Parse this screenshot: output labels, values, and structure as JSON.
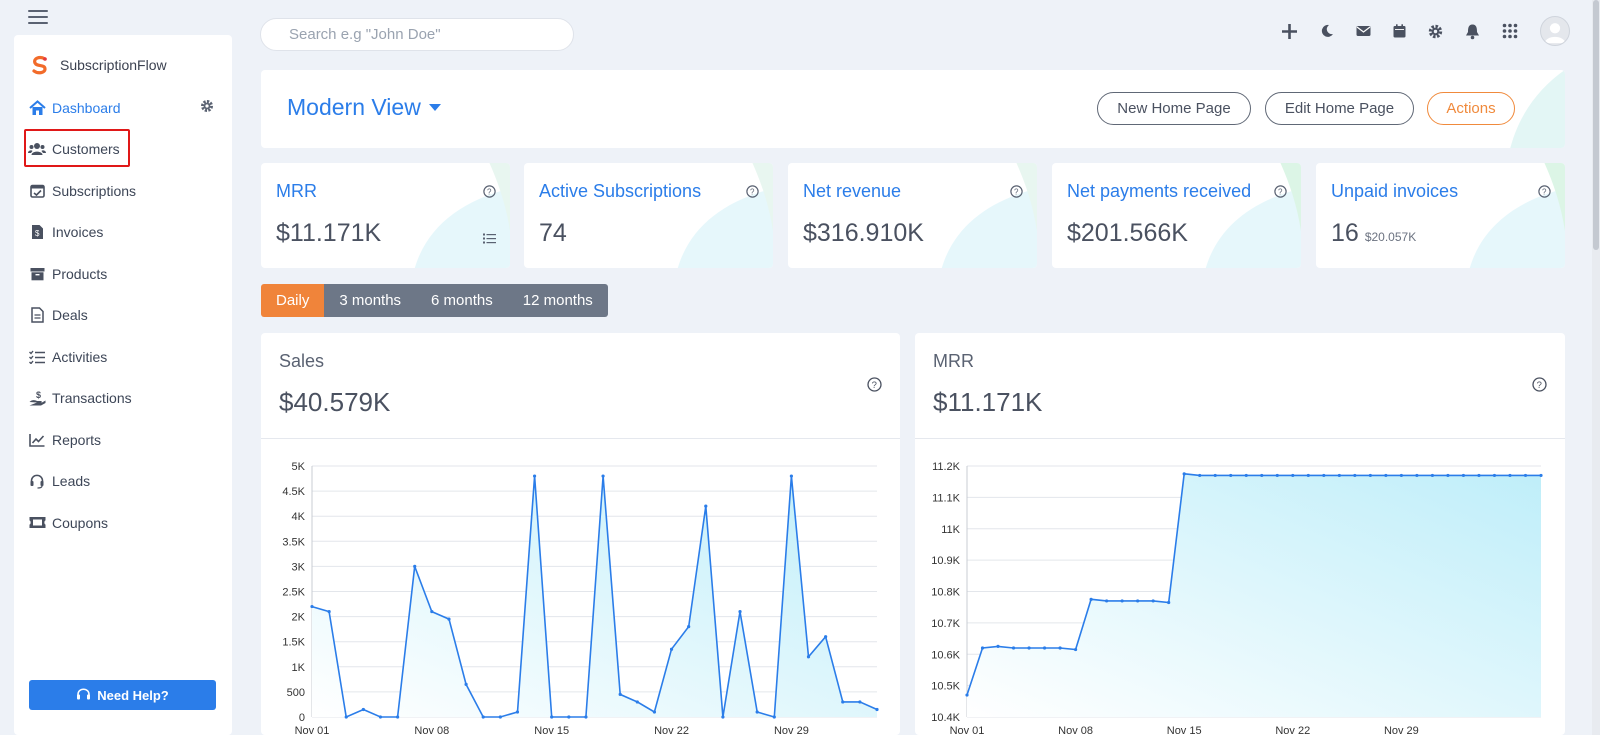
{
  "app": {
    "name": "SubscriptionFlow"
  },
  "sidebar": {
    "items": [
      {
        "label": "Dashboard",
        "icon": "home-icon"
      },
      {
        "label": "Customers",
        "icon": "users-icon"
      },
      {
        "label": "Subscriptions",
        "icon": "calendar-check-icon"
      },
      {
        "label": "Invoices",
        "icon": "invoice-icon"
      },
      {
        "label": "Products",
        "icon": "box-icon"
      },
      {
        "label": "Deals",
        "icon": "document-icon"
      },
      {
        "label": "Activities",
        "icon": "checklist-icon"
      },
      {
        "label": "Transactions",
        "icon": "hand-coin-icon"
      },
      {
        "label": "Reports",
        "icon": "chart-line-icon"
      },
      {
        "label": "Leads",
        "icon": "headset-icon"
      },
      {
        "label": "Coupons",
        "icon": "ticket-icon"
      }
    ],
    "help_label": "Need Help?"
  },
  "search": {
    "placeholder": "Search e.g \"John Doe\""
  },
  "header": {
    "view_title": "Modern View",
    "buttons": {
      "new_home": "New Home Page",
      "edit_home": "Edit Home Page",
      "actions": "Actions"
    }
  },
  "stats": [
    {
      "label": "MRR",
      "value": "$11.171K"
    },
    {
      "label": "Active Subscriptions",
      "value": "74"
    },
    {
      "label": "Net revenue",
      "value": "$316.910K"
    },
    {
      "label": "Net payments received",
      "value": "$201.566K"
    },
    {
      "label": "Unpaid invoices",
      "value": "16",
      "sub": "$20.057K"
    }
  ],
  "period_tabs": [
    "Daily",
    "3 months",
    "6 months",
    "12 months"
  ],
  "colors": {
    "accent": "#2b7de9",
    "orange": "#f0843a",
    "tab_gray": "#6d7787"
  },
  "chart_data": [
    {
      "type": "area",
      "title": "Sales",
      "headline": "$40.579K",
      "x_tick_labels": [
        "Nov 01",
        "Nov 08",
        "Nov 15",
        "Nov 22",
        "Nov 29"
      ],
      "y_tick_labels": [
        "0",
        "500",
        "1K",
        "1.5K",
        "2K",
        "2.5K",
        "3K",
        "3.5K",
        "4K",
        "4.5K",
        "5K"
      ],
      "ylim": [
        0,
        5000
      ],
      "values": [
        2200,
        2100,
        0,
        150,
        0,
        0,
        3000,
        2100,
        1950,
        650,
        0,
        0,
        100,
        4800,
        0,
        0,
        0,
        4800,
        450,
        300,
        100,
        1350,
        1800,
        4200,
        0,
        2100,
        100,
        0,
        4800,
        1200,
        1600,
        300,
        300,
        150
      ]
    },
    {
      "type": "area",
      "title": "MRR",
      "headline": "$11.171K",
      "x_tick_labels": [
        "Nov 01",
        "Nov 08",
        "Nov 15",
        "Nov 22",
        "Nov 29"
      ],
      "y_tick_labels": [
        "10.4K",
        "10.5K",
        "10.6K",
        "10.7K",
        "10.8K",
        "10.9K",
        "11K",
        "11.1K",
        "11.2K"
      ],
      "ylim": [
        10400,
        11200
      ],
      "values": [
        10470,
        10620,
        10625,
        10620,
        10620,
        10620,
        10620,
        10615,
        10775,
        10770,
        10770,
        10770,
        10770,
        10765,
        11175,
        11170,
        11170,
        11170,
        11170,
        11170,
        11170,
        11170,
        11170,
        11170,
        11170,
        11170,
        11170,
        11170,
        11170,
        11170,
        11170,
        11170,
        11170,
        11170,
        11170,
        11170,
        11170,
        11170
      ]
    }
  ]
}
